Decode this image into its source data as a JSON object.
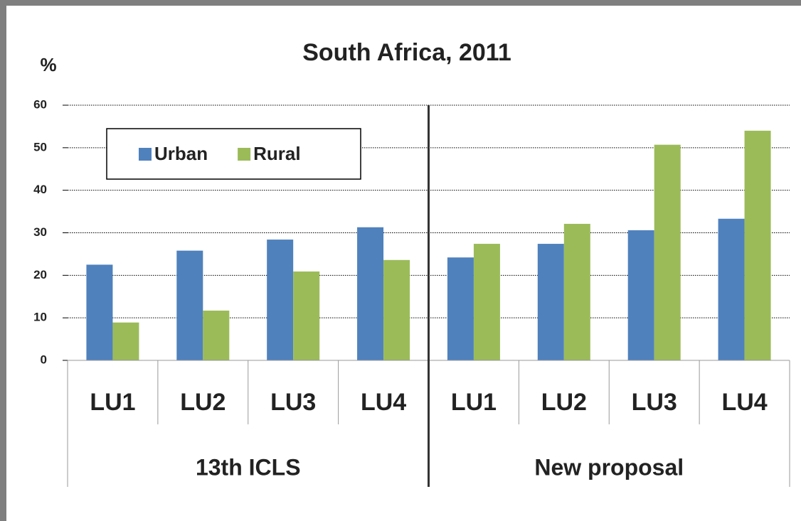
{
  "chart_data": {
    "type": "bar",
    "title": "South Africa, 2011",
    "y_label": "%",
    "categories": [
      "LU1",
      "LU2",
      "LU3",
      "LU4",
      "LU1",
      "LU2",
      "LU3",
      "LU4"
    ],
    "groups": [
      "13th ICLS",
      "New proposal"
    ],
    "series": [
      {
        "name": "Urban",
        "color": "#4f81bd",
        "values": [
          22.5,
          25.8,
          28.4,
          31.3,
          24.2,
          27.4,
          30.6,
          33.3
        ]
      },
      {
        "name": "Rural",
        "color": "#9bbb59",
        "values": [
          8.9,
          11.7,
          20.9,
          23.6,
          27.4,
          32.1,
          50.7,
          54.0
        ]
      }
    ],
    "ylim": [
      0,
      60
    ],
    "yticks": [
      0,
      10,
      20,
      30,
      40,
      50,
      60
    ],
    "grid": true,
    "legend": "upper left"
  }
}
